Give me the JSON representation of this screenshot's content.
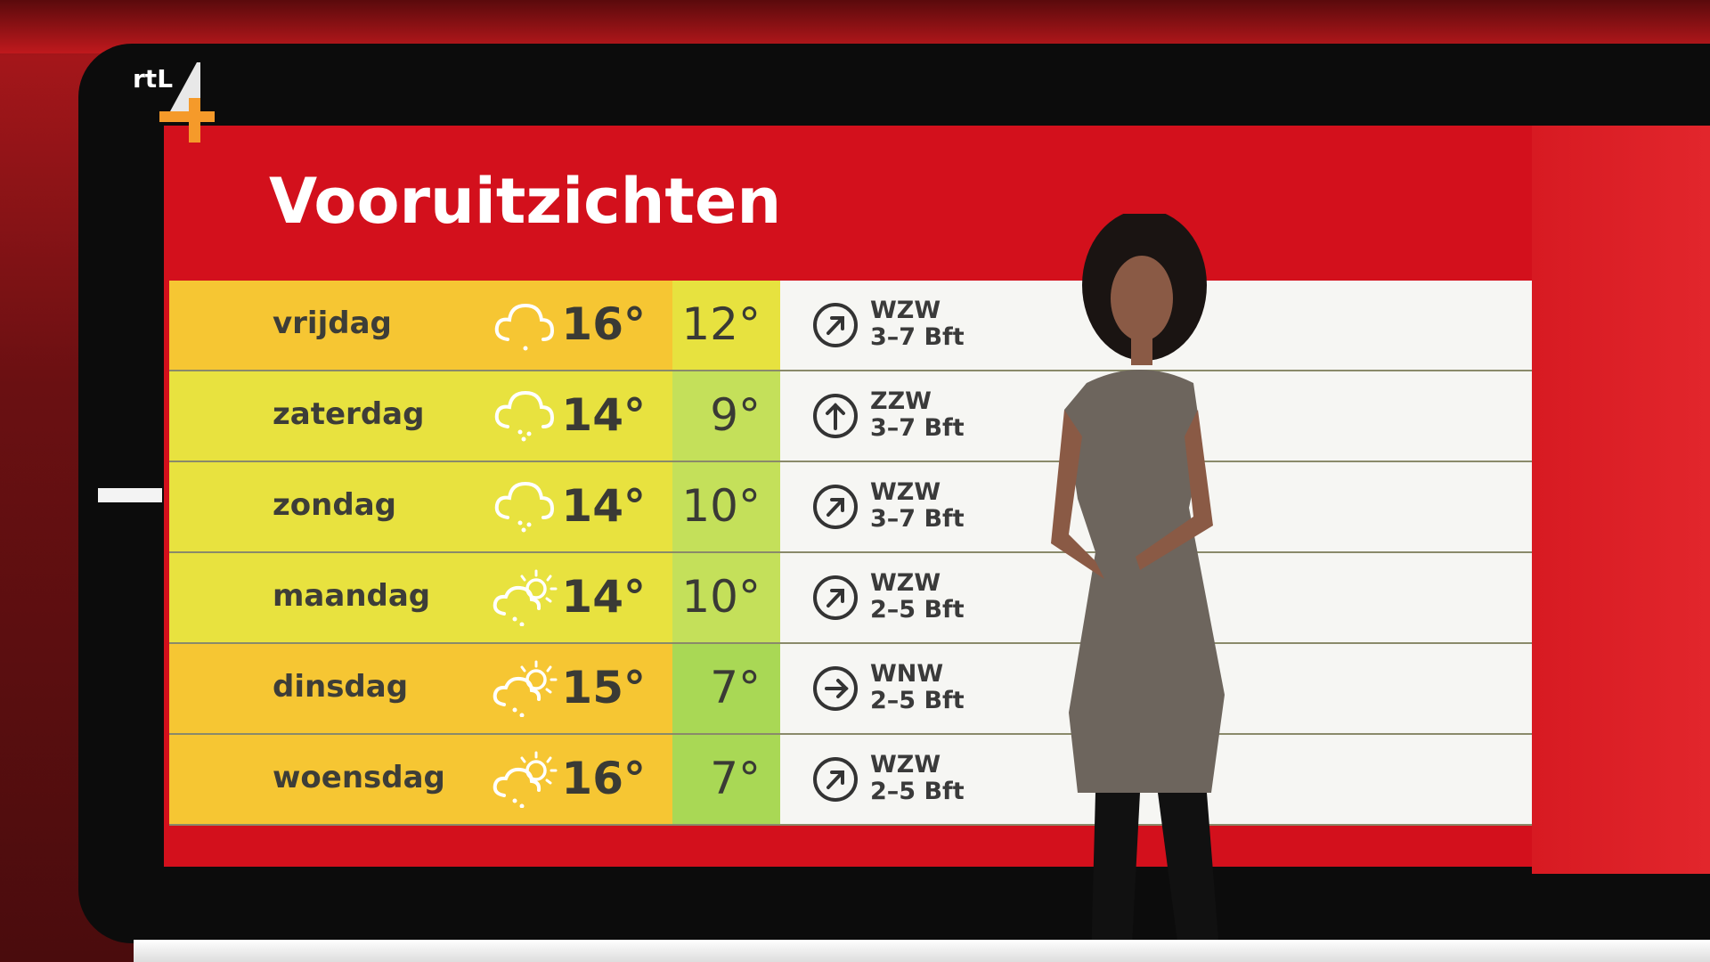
{
  "broadcaster": {
    "logo_text": "rtl4"
  },
  "board": {
    "title": "Vooruitzichten",
    "colors": {
      "panel": "#d3101c",
      "orange": "#f6c633",
      "yellow": "#e8e23f",
      "light_green": "#c4e05a",
      "green": "#a9d855"
    },
    "rows": [
      {
        "day": "vrijdag",
        "icon": "cloud-drizzle-icon",
        "high": "16°",
        "low": "12°",
        "wind_dir": "WZW",
        "wind_force": "3–7 Bft",
        "wind_arrow": "arrow-up-right-icon",
        "day_color": "#f6c633",
        "low_color": "#e7e23f"
      },
      {
        "day": "zaterdag",
        "icon": "cloud-rain-icon",
        "high": "14°",
        "low": "9°",
        "wind_dir": "ZZW",
        "wind_force": "3–7 Bft",
        "wind_arrow": "arrow-up-icon",
        "day_color": "#e8e23f",
        "low_color": "#c4e05a"
      },
      {
        "day": "zondag",
        "icon": "cloud-rain-icon",
        "high": "14°",
        "low": "10°",
        "wind_dir": "WZW",
        "wind_force": "3–7 Bft",
        "wind_arrow": "arrow-up-right-icon",
        "day_color": "#e8e23f",
        "low_color": "#c4e05a"
      },
      {
        "day": "maandag",
        "icon": "sun-cloud-shower-icon",
        "high": "14°",
        "low": "10°",
        "wind_dir": "WZW",
        "wind_force": "2–5 Bft",
        "wind_arrow": "arrow-up-right-icon",
        "day_color": "#e8e23f",
        "low_color": "#c4e05a"
      },
      {
        "day": "dinsdag",
        "icon": "sun-cloud-shower-icon",
        "high": "15°",
        "low": "7°",
        "wind_dir": "WNW",
        "wind_force": "2–5 Bft",
        "wind_arrow": "arrow-right-icon",
        "day_color": "#f6c633",
        "low_color": "#a9d855"
      },
      {
        "day": "woensdag",
        "icon": "sun-cloud-shower-icon",
        "high": "16°",
        "low": "7°",
        "wind_dir": "WZW",
        "wind_force": "2–5 Bft",
        "wind_arrow": "arrow-up-right-icon",
        "day_color": "#f6c633",
        "low_color": "#a9d855"
      }
    ]
  }
}
